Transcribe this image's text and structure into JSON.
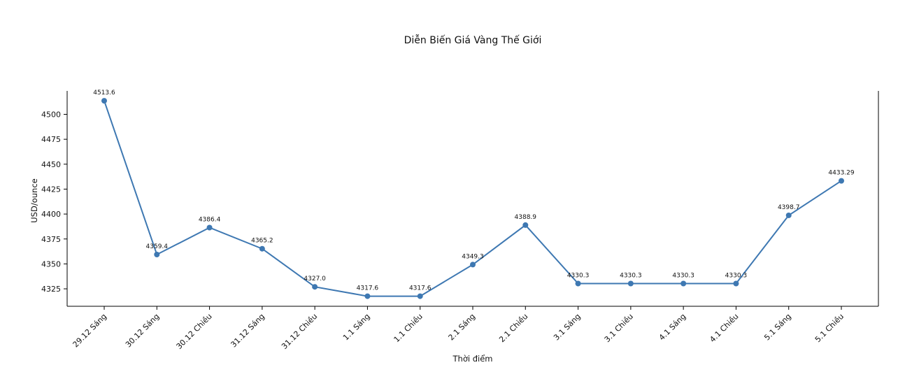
{
  "chart_data": {
    "type": "line",
    "title": "Diễn Biến Giá Vàng Thế Giới",
    "xlabel": "Thời điểm",
    "ylabel": "USD/ounce",
    "categories": [
      "29.12 Sáng",
      "30.12 Sáng",
      "30.12 Chiều",
      "31.12 Sáng",
      "31.12 Chiều",
      "1.1 Sáng",
      "1.1 Chiều",
      "2.1 Sáng",
      "2.1 Chiều",
      "3.1 Sáng",
      "3.1 Chiều",
      "4.1 Sáng",
      "4.1 Chiều",
      "5.1 Sáng",
      "5.1 Chiều"
    ],
    "values": [
      4513.6,
      4359.4,
      4386.4,
      4365.2,
      4327.0,
      4317.6,
      4317.6,
      4349.3,
      4388.9,
      4330.3,
      4330.3,
      4330.3,
      4330.3,
      4398.7,
      4433.29
    ],
    "data_labels": [
      "4513.6",
      "4359.4",
      "4386.4",
      "4365.2",
      "4327.0",
      "4317.6",
      "4317.6",
      "4349.3",
      "4388.9",
      "4330.3",
      "4330.3",
      "4330.3",
      "4330.3",
      "4398.7",
      "4433.29"
    ],
    "yticks": [
      4325,
      4350,
      4375,
      4400,
      4425,
      4450,
      4475,
      4500
    ],
    "ylim": [
      4307.5,
      4523.5
    ],
    "grid": false,
    "color": "#3e78b2"
  }
}
